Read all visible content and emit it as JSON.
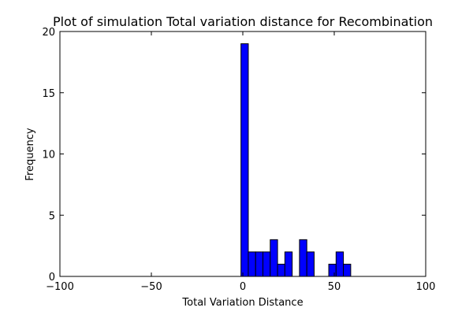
{
  "chart_data": {
    "type": "bar",
    "title": "Plot of simulation Total variation distance for Recombination",
    "xlabel": "Total Variation Distance",
    "ylabel": "Frequency",
    "xlim": [
      -100,
      100
    ],
    "ylim": [
      0,
      20
    ],
    "xticks": [
      -100,
      -50,
      0,
      50,
      100
    ],
    "xtick_labels": [
      "−100",
      "−50",
      "0",
      "50",
      "100"
    ],
    "yticks": [
      0,
      5,
      10,
      15,
      20
    ],
    "ytick_labels": [
      "0",
      "5",
      "10",
      "15",
      "20"
    ],
    "bin_width": 4,
    "bins": [
      {
        "x0": -1,
        "x1": 3,
        "count": 19
      },
      {
        "x0": 3,
        "x1": 7,
        "count": 2
      },
      {
        "x0": 7,
        "x1": 11,
        "count": 2
      },
      {
        "x0": 11,
        "x1": 15,
        "count": 2
      },
      {
        "x0": 15,
        "x1": 19,
        "count": 3
      },
      {
        "x0": 19,
        "x1": 23,
        "count": 1
      },
      {
        "x0": 23,
        "x1": 27,
        "count": 2
      },
      {
        "x0": 31,
        "x1": 35,
        "count": 3
      },
      {
        "x0": 35,
        "x1": 39,
        "count": 2
      },
      {
        "x0": 47,
        "x1": 51,
        "count": 1
      },
      {
        "x0": 51,
        "x1": 55,
        "count": 2
      },
      {
        "x0": 55,
        "x1": 59,
        "count": 1
      }
    ],
    "bar_color": "#0000ff",
    "edge_color": "#000000",
    "grid": false
  }
}
